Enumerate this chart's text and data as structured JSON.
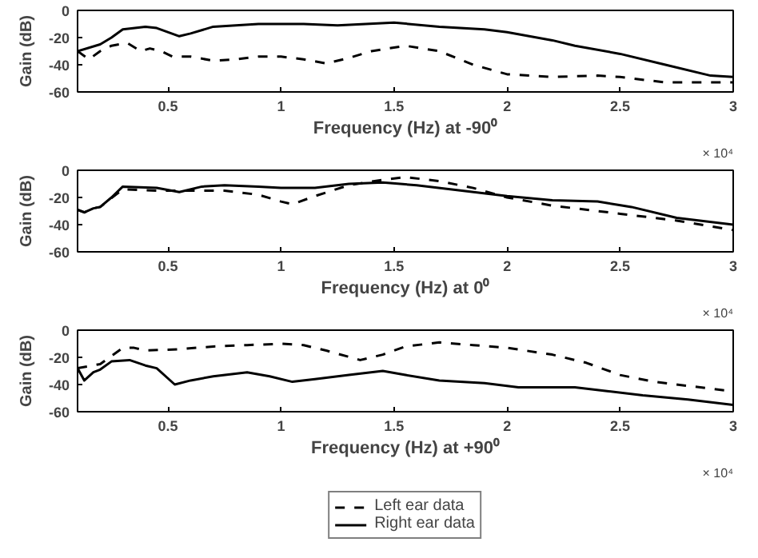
{
  "chart_data": [
    {
      "type": "line",
      "xlabel": "Frequency (Hz) at -90⁰",
      "ylabel": "Gain (dB)",
      "xlim": [
        0.1,
        3
      ],
      "ylim": [
        -60,
        0
      ],
      "xticks": [
        0.5,
        1,
        1.5,
        2,
        2.5,
        3
      ],
      "yticks": [
        -60,
        -40,
        -20,
        0
      ],
      "grid": false,
      "annotations": [
        "× 10⁴"
      ],
      "series": [
        {
          "color": "#000000",
          "line_style": "dashed",
          "x": [
            0.1,
            0.15,
            0.2,
            0.25,
            0.32,
            0.38,
            0.42,
            0.47,
            0.52,
            0.6,
            0.7,
            0.8,
            0.9,
            1.0,
            1.1,
            1.2,
            1.3,
            1.4,
            1.55,
            1.7,
            1.85,
            2.0,
            2.2,
            2.4,
            2.5,
            2.7,
            2.9,
            3
          ],
          "values": [
            -30,
            -36,
            -30,
            -26,
            -24,
            -30,
            -28,
            -30,
            -34,
            -34,
            -37,
            -36,
            -34,
            -34,
            -36,
            -39,
            -35,
            -30,
            -26,
            -30,
            -40,
            -47,
            -49,
            -48,
            -49,
            -53,
            -53,
            -53
          ]
        },
        {
          "color": "#000000",
          "line_style": "solid",
          "x": [
            0.1,
            0.2,
            0.25,
            0.3,
            0.4,
            0.45,
            0.55,
            0.6,
            0.7,
            0.9,
            1.1,
            1.25,
            1.5,
            1.7,
            1.9,
            2.0,
            2.2,
            2.3,
            2.5,
            2.7,
            2.9,
            3
          ],
          "values": [
            -30,
            -25,
            -20,
            -14,
            -12,
            -13,
            -19,
            -17,
            -12,
            -10,
            -10,
            -11,
            -9,
            -12,
            -14,
            -16,
            -22,
            -26,
            -32,
            -40,
            -48,
            -49
          ]
        }
      ]
    },
    {
      "type": "line",
      "xlabel": "Frequency (Hz) at 0⁰",
      "ylabel": "Gain (dB)",
      "xlim": [
        0.1,
        3
      ],
      "ylim": [
        -60,
        0
      ],
      "xticks": [
        0.5,
        1,
        1.5,
        2,
        2.5,
        3
      ],
      "yticks": [
        -60,
        -40,
        -20,
        0
      ],
      "grid": false,
      "annotations": [
        "× 10⁴"
      ],
      "series": [
        {
          "color": "#000000",
          "line_style": "dashed",
          "x": [
            0.1,
            0.13,
            0.17,
            0.2,
            0.3,
            0.45,
            0.6,
            0.75,
            0.9,
            1.0,
            1.05,
            1.15,
            1.3,
            1.45,
            1.55,
            1.7,
            1.85,
            2.0,
            2.2,
            2.5,
            2.75,
            3
          ],
          "values": [
            -29,
            -31,
            -28,
            -27,
            -14,
            -15,
            -15,
            -15,
            -18,
            -23,
            -25,
            -19,
            -11,
            -7,
            -5,
            -8,
            -13,
            -20,
            -26,
            -32,
            -37,
            -44
          ]
        },
        {
          "color": "#000000",
          "line_style": "solid",
          "x": [
            0.1,
            0.13,
            0.17,
            0.2,
            0.25,
            0.3,
            0.45,
            0.55,
            0.65,
            0.75,
            0.9,
            1.0,
            1.15,
            1.3,
            1.45,
            1.6,
            1.8,
            2.0,
            2.2,
            2.4,
            2.55,
            2.75,
            3
          ],
          "values": [
            -29,
            -31,
            -28,
            -27,
            -20,
            -12,
            -13,
            -16,
            -12,
            -11,
            -12,
            -13,
            -13,
            -10,
            -9,
            -11,
            -15,
            -19,
            -22,
            -23,
            -27,
            -35,
            -40
          ]
        }
      ]
    },
    {
      "type": "line",
      "xlabel": "Frequency (Hz) at +90⁰",
      "ylabel": "Gain (dB)",
      "xlim": [
        0.1,
        3
      ],
      "ylim": [
        -60,
        0
      ],
      "xticks": [
        0.5,
        1,
        1.5,
        2,
        2.5,
        3
      ],
      "yticks": [
        -60,
        -40,
        -20,
        0
      ],
      "grid": false,
      "legend": "bottom",
      "annotations": [
        "× 10⁴"
      ],
      "series": [
        {
          "name": "Left ear data",
          "color": "#000000",
          "line_style": "dashed",
          "x": [
            0.1,
            0.2,
            0.3,
            0.35,
            0.4,
            0.55,
            0.7,
            0.85,
            1.0,
            1.1,
            1.2,
            1.35,
            1.45,
            1.55,
            1.7,
            1.85,
            2.0,
            2.2,
            2.35,
            2.5,
            2.65,
            2.8,
            3
          ],
          "values": [
            -28,
            -25,
            -13,
            -13,
            -15,
            -14,
            -12,
            -11,
            -10,
            -11,
            -15,
            -22,
            -18,
            -12,
            -9,
            -11,
            -13,
            -18,
            -24,
            -33,
            -38,
            -41,
            -45
          ]
        },
        {
          "name": "Right ear data",
          "color": "#000000",
          "line_style": "solid",
          "x": [
            0.1,
            0.13,
            0.17,
            0.2,
            0.25,
            0.33,
            0.4,
            0.45,
            0.53,
            0.6,
            0.7,
            0.85,
            0.95,
            1.05,
            1.15,
            1.3,
            1.45,
            1.55,
            1.7,
            1.9,
            2.05,
            2.3,
            2.45,
            2.6,
            2.8,
            3
          ],
          "values": [
            -28,
            -37,
            -31,
            -29,
            -23,
            -22,
            -26,
            -28,
            -40,
            -37,
            -34,
            -31,
            -34,
            -38,
            -36,
            -33,
            -30,
            -33,
            -37,
            -39,
            -42,
            -42,
            -45,
            -48,
            -51,
            -55
          ]
        }
      ]
    }
  ]
}
